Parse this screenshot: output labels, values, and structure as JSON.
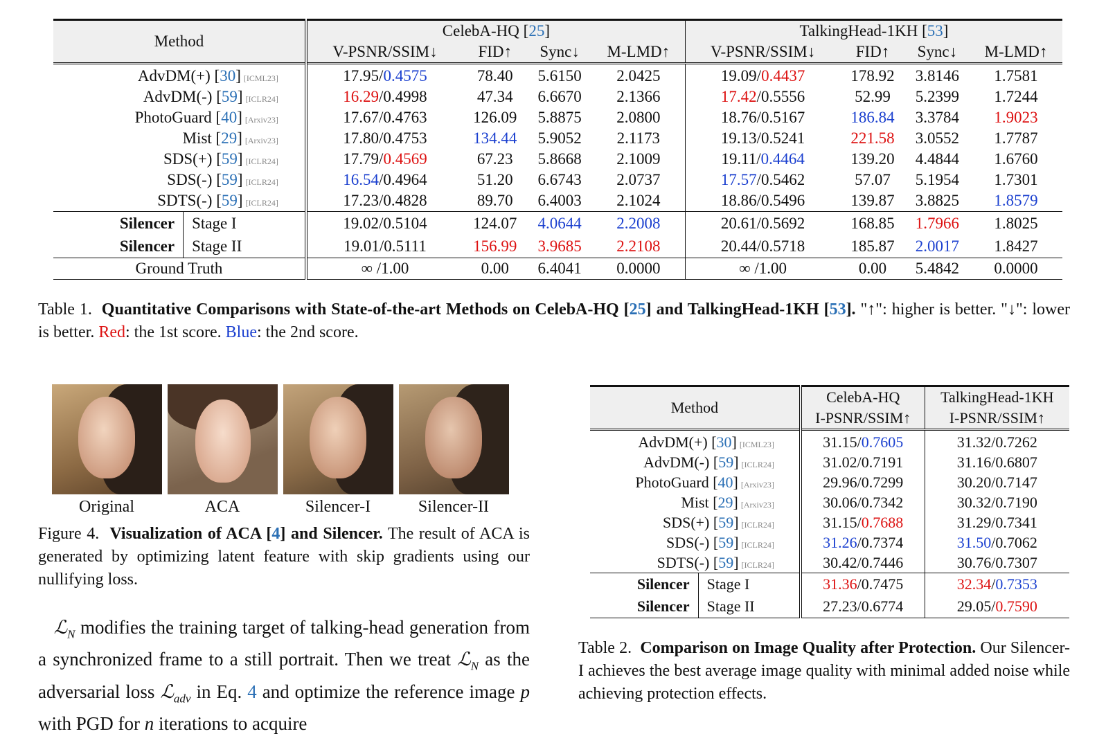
{
  "table1": {
    "method_header": "Method",
    "groups": [
      {
        "name": "CelebA-HQ",
        "ref": "25"
      },
      {
        "name": "TalkingHead-1KH",
        "ref": "53"
      }
    ],
    "metrics": [
      "V-PSNR/SSIM↓",
      "FID↑",
      "Sync↓",
      "M-LMD↑",
      "V-PSNR/SSIM↓",
      "FID↑",
      "Sync↓",
      "M-LMD↑"
    ],
    "rows": [
      {
        "name": "AdvDM(+)",
        "ref": "30",
        "venue": "[ICML23]",
        "cells": [
          [
            {
              "t": "17.95/"
            },
            {
              "t": "0.4575",
              "c": "blue"
            }
          ],
          [
            {
              "t": "78.40"
            }
          ],
          [
            {
              "t": "5.6150"
            }
          ],
          [
            {
              "t": "2.0425"
            }
          ],
          [
            {
              "t": "19.09/"
            },
            {
              "t": "0.4437",
              "c": "red"
            }
          ],
          [
            {
              "t": "178.92"
            }
          ],
          [
            {
              "t": "3.8146"
            }
          ],
          [
            {
              "t": "1.7581"
            }
          ]
        ]
      },
      {
        "name": "AdvDM(-)",
        "ref": "59",
        "venue": "[ICLR24]",
        "cells": [
          [
            {
              "t": "16.29",
              "c": "red"
            },
            {
              "t": "/0.4998"
            }
          ],
          [
            {
              "t": "47.34"
            }
          ],
          [
            {
              "t": "6.6670"
            }
          ],
          [
            {
              "t": "2.1366"
            }
          ],
          [
            {
              "t": "17.42",
              "c": "red"
            },
            {
              "t": "/0.5556"
            }
          ],
          [
            {
              "t": "52.99"
            }
          ],
          [
            {
              "t": "5.2399"
            }
          ],
          [
            {
              "t": "1.7244"
            }
          ]
        ]
      },
      {
        "name": "PhotoGuard",
        "ref": "40",
        "venue": "[Arxiv23]",
        "cells": [
          [
            {
              "t": "17.67/0.4763"
            }
          ],
          [
            {
              "t": "126.09"
            }
          ],
          [
            {
              "t": "5.8875"
            }
          ],
          [
            {
              "t": "2.0800"
            }
          ],
          [
            {
              "t": "18.76/0.5167"
            }
          ],
          [
            {
              "t": "186.84",
              "c": "blue"
            }
          ],
          [
            {
              "t": "3.3784"
            }
          ],
          [
            {
              "t": "1.9023",
              "c": "red"
            }
          ]
        ]
      },
      {
        "name": "Mist",
        "ref": "29",
        "venue": "[Arxiv23]",
        "cells": [
          [
            {
              "t": "17.80/0.4753"
            }
          ],
          [
            {
              "t": "134.44",
              "c": "blue"
            }
          ],
          [
            {
              "t": "5.9052"
            }
          ],
          [
            {
              "t": "2.1173"
            }
          ],
          [
            {
              "t": "19.13/0.5241"
            }
          ],
          [
            {
              "t": "221.58",
              "c": "red"
            }
          ],
          [
            {
              "t": "3.0552"
            }
          ],
          [
            {
              "t": "1.7787"
            }
          ]
        ]
      },
      {
        "name": "SDS(+)",
        "ref": "59",
        "venue": "[ICLR24]",
        "cells": [
          [
            {
              "t": "17.79/"
            },
            {
              "t": "0.4569",
              "c": "red"
            }
          ],
          [
            {
              "t": "67.23"
            }
          ],
          [
            {
              "t": "5.8668"
            }
          ],
          [
            {
              "t": "2.1009"
            }
          ],
          [
            {
              "t": "19.11/"
            },
            {
              "t": "0.4464",
              "c": "blue"
            }
          ],
          [
            {
              "t": "139.20"
            }
          ],
          [
            {
              "t": "4.4844"
            }
          ],
          [
            {
              "t": "1.6760"
            }
          ]
        ]
      },
      {
        "name": "SDS(-)",
        "ref": "59",
        "venue": "[ICLR24]",
        "cells": [
          [
            {
              "t": "16.54",
              "c": "blue"
            },
            {
              "t": "/0.4964"
            }
          ],
          [
            {
              "t": "51.20"
            }
          ],
          [
            {
              "t": "6.6743"
            }
          ],
          [
            {
              "t": "2.0737"
            }
          ],
          [
            {
              "t": "17.57",
              "c": "blue"
            },
            {
              "t": "/0.5462"
            }
          ],
          [
            {
              "t": "57.07"
            }
          ],
          [
            {
              "t": "5.1954"
            }
          ],
          [
            {
              "t": "1.7301"
            }
          ]
        ]
      },
      {
        "name": "SDTS(-)",
        "ref": "59",
        "venue": "[ICLR24]",
        "cells": [
          [
            {
              "t": "17.23/0.4828"
            }
          ],
          [
            {
              "t": "89.70"
            }
          ],
          [
            {
              "t": "6.4003"
            }
          ],
          [
            {
              "t": "2.1024"
            }
          ],
          [
            {
              "t": "18.86/0.5496"
            }
          ],
          [
            {
              "t": "139.87"
            }
          ],
          [
            {
              "t": "3.8825"
            }
          ],
          [
            {
              "t": "1.8579",
              "c": "blue"
            }
          ]
        ]
      }
    ],
    "silencer_rows": [
      {
        "name": "Silencer",
        "stage": "Stage I",
        "cells": [
          [
            {
              "t": "19.02/0.5104"
            }
          ],
          [
            {
              "t": "124.07"
            }
          ],
          [
            {
              "t": "4.0644",
              "c": "blue"
            }
          ],
          [
            {
              "t": "2.2008",
              "c": "blue"
            }
          ],
          [
            {
              "t": "20.61/0.5692"
            }
          ],
          [
            {
              "t": "168.85"
            }
          ],
          [
            {
              "t": "1.7966",
              "c": "red"
            }
          ],
          [
            {
              "t": "1.8025"
            }
          ]
        ]
      },
      {
        "name": "Silencer",
        "stage": "Stage II",
        "cells": [
          [
            {
              "t": "19.01/0.5111"
            }
          ],
          [
            {
              "t": "156.99",
              "c": "red"
            }
          ],
          [
            {
              "t": "3.9685",
              "c": "red"
            }
          ],
          [
            {
              "t": "2.2108",
              "c": "red"
            }
          ],
          [
            {
              "t": "20.44/0.5718"
            }
          ],
          [
            {
              "t": "185.87"
            }
          ],
          [
            {
              "t": "2.0017",
              "c": "blue"
            }
          ],
          [
            {
              "t": "1.8427"
            }
          ]
        ]
      }
    ],
    "ground_truth": {
      "name": "Ground Truth",
      "cells": [
        [
          {
            "t": "∞ /1.00"
          }
        ],
        [
          {
            "t": "0.00"
          }
        ],
        [
          {
            "t": "6.4041"
          }
        ],
        [
          {
            "t": "0.0000"
          }
        ],
        [
          {
            "t": "∞ /1.00"
          }
        ],
        [
          {
            "t": "0.00"
          }
        ],
        [
          {
            "t": "5.4842"
          }
        ],
        [
          {
            "t": "0.0000"
          }
        ]
      ]
    }
  },
  "caption1": {
    "label": "Table 1.",
    "title_a": "Quantitative Comparisons with State-of-the-art Methods on CelebA-HQ [",
    "ref_a": "25",
    "title_b": "] and TalkingHead-1KH [",
    "ref_b": "53",
    "title_c": "].",
    "text_a": " \"↑\": higher is better. \"↓\": lower is better. ",
    "red_word": "Red",
    "text_b": ": the 1st score. ",
    "blue_word": "Blue",
    "text_c": ": the 2nd score."
  },
  "figure4": {
    "labels": [
      "Original",
      "ACA",
      "Silencer-I",
      "Silencer-II"
    ],
    "caption_label": "Figure 4.",
    "caption_title_a": "Visualization of ACA [",
    "caption_ref": "4",
    "caption_title_b": "] and Silencer.",
    "caption_text": " The result of ACA is generated by optimizing latent feature with skip gradients using our nullifying loss."
  },
  "paragraph": {
    "L": "ℒ",
    "N": "N",
    "adv": "adv",
    "p": "p",
    "n": "n",
    "t1": " modifies the training target of talking-head generation from a synchronized frame to a still portrait. Then we treat ",
    "t2": " as the adversarial loss ",
    "t3": " in Eq. ",
    "eq": "4",
    "t4": " and optimize the reference image ",
    "t5": " with PGD for ",
    "t6": " iterations to acquire"
  },
  "table2": {
    "method_header": "Method",
    "groups": [
      "CelebA-HQ",
      "TalkingHead-1KH"
    ],
    "metrics": [
      "I-PSNR/SSIM↑",
      "I-PSNR/SSIM↑"
    ],
    "rows": [
      {
        "name": "AdvDM(+)",
        "ref": "30",
        "venue": "[ICML23]",
        "cells": [
          [
            {
              "t": "31.15/"
            },
            {
              "t": "0.7605",
              "c": "blue"
            }
          ],
          [
            {
              "t": "31.32/0.7262"
            }
          ]
        ]
      },
      {
        "name": "AdvDM(-)",
        "ref": "59",
        "venue": "[ICLR24]",
        "cells": [
          [
            {
              "t": "31.02/0.7191"
            }
          ],
          [
            {
              "t": "31.16/0.6807"
            }
          ]
        ]
      },
      {
        "name": "PhotoGuard",
        "ref": "40",
        "venue": "[Arxiv23]",
        "cells": [
          [
            {
              "t": "29.96/0.7299"
            }
          ],
          [
            {
              "t": "30.20/0.7147"
            }
          ]
        ]
      },
      {
        "name": "Mist",
        "ref": "29",
        "venue": "[Arxiv23]",
        "cells": [
          [
            {
              "t": "30.06/0.7342"
            }
          ],
          [
            {
              "t": "30.32/0.7190"
            }
          ]
        ]
      },
      {
        "name": "SDS(+)",
        "ref": "59",
        "venue": "[ICLR24]",
        "cells": [
          [
            {
              "t": "31.15/"
            },
            {
              "t": "0.7688",
              "c": "red"
            }
          ],
          [
            {
              "t": "31.29/0.7341"
            }
          ]
        ]
      },
      {
        "name": "SDS(-)",
        "ref": "59",
        "venue": "[ICLR24]",
        "cells": [
          [
            {
              "t": "31.26",
              "c": "blue"
            },
            {
              "t": "/0.7374"
            }
          ],
          [
            {
              "t": "31.50",
              "c": "blue"
            },
            {
              "t": "/0.7062"
            }
          ]
        ]
      },
      {
        "name": "SDTS(-)",
        "ref": "59",
        "venue": "[ICLR24]",
        "cells": [
          [
            {
              "t": "30.42/0.7446"
            }
          ],
          [
            {
              "t": "30.76/0.7307"
            }
          ]
        ]
      }
    ],
    "silencer_rows": [
      {
        "name": "Silencer",
        "stage": "Stage I",
        "cells": [
          [
            {
              "t": "31.36",
              "c": "red"
            },
            {
              "t": "/0.7475"
            }
          ],
          [
            {
              "t": "32.34",
              "c": "red"
            },
            {
              "t": "/"
            },
            {
              "t": "0.7353",
              "c": "blue"
            }
          ]
        ]
      },
      {
        "name": "Silencer",
        "stage": "Stage II",
        "cells": [
          [
            {
              "t": "27.23/0.6774"
            }
          ],
          [
            {
              "t": "29.05/"
            },
            {
              "t": "0.7590",
              "c": "red"
            }
          ]
        ]
      }
    ]
  },
  "caption2": {
    "label": "Table 2.",
    "title": "Comparison on Image Quality after Protection.",
    "text": " Our Silencer-I achieves the best average image quality with minimal added noise while achieving protection effects."
  },
  "colors": {
    "red": "#dd1111",
    "blue": "#1a3fcf",
    "cite": "#2a6fb5"
  }
}
